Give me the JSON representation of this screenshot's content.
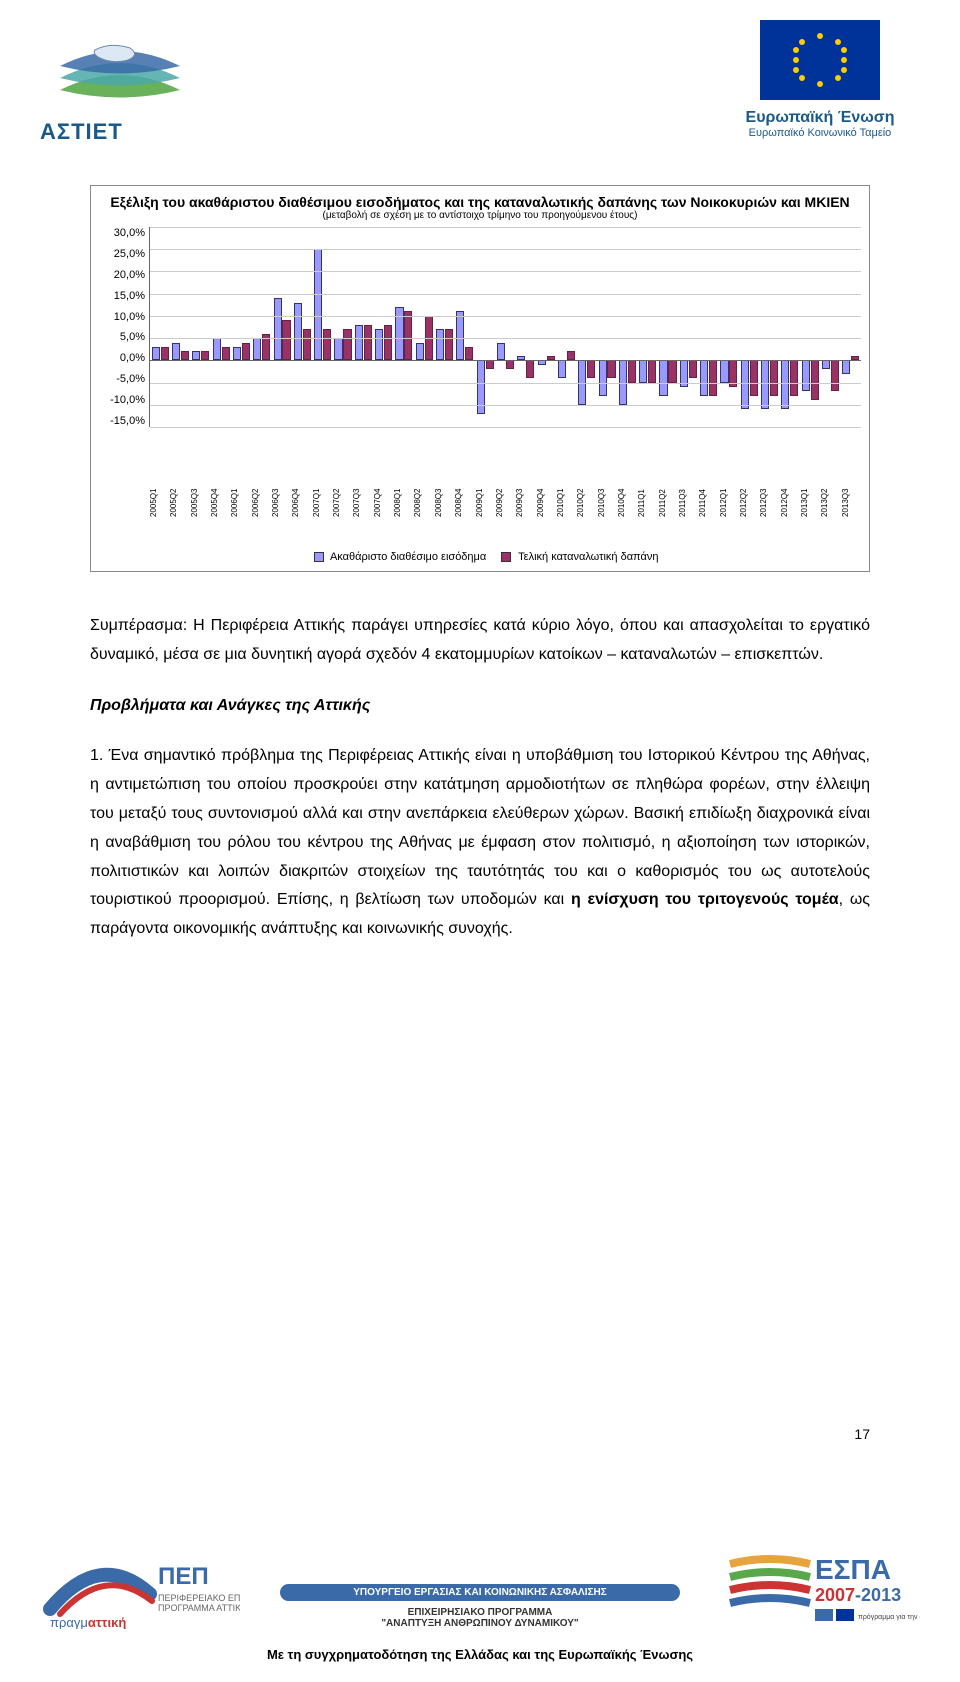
{
  "header": {
    "left_logo_text": "ΑΣΤΙΕΤ",
    "eu_title": "Ευρωπαϊκή Ένωση",
    "eu_sub": "Ευρωπαϊκό Κοινωνικό Ταμείο"
  },
  "chart": {
    "type": "bar",
    "title": "Εξέλιξη του ακαθάριστου διαθέσιμου εισοδήματος και της καταναλωτικής δαπάνης των Νοικοκυριών και ΜΚΙΕΝ",
    "subtitle": "(μεταβολή σε σχέση με το αντίστοιχο τρίμηνο του προηγούμενου έτους)",
    "ylim": [
      -15,
      30
    ],
    "yticks": [
      "30,0%",
      "25,0%",
      "20,0%",
      "15,0%",
      "10,0%",
      "5,0%",
      "0,0%",
      "-5,0%",
      "-10,0%",
      "-15,0%"
    ],
    "categories": [
      "2005Q1",
      "2005Q2",
      "2005Q3",
      "2005Q4",
      "2006Q1",
      "2006Q2",
      "2006Q3",
      "2006Q4",
      "2007Q1",
      "2007Q2",
      "2007Q3",
      "2007Q4",
      "2008Q1",
      "2008Q2",
      "2008Q3",
      "2008Q4",
      "2009Q1",
      "2009Q2",
      "2009Q3",
      "2009Q4",
      "2010Q1",
      "2010Q2",
      "2010Q3",
      "2010Q4",
      "2011Q1",
      "2011Q2",
      "2011Q3",
      "2011Q4",
      "2012Q1",
      "2012Q2",
      "2012Q3",
      "2012Q4",
      "2013Q1",
      "2013Q2",
      "2013Q3"
    ],
    "series1": {
      "label": "Ακαθάριστο διαθέσιμο εισόδημα",
      "color": "#9999ff",
      "values": [
        3,
        4,
        2,
        5,
        3,
        5,
        14,
        13,
        25,
        5,
        8,
        7,
        12,
        4,
        7,
        11,
        -12,
        4,
        1,
        -1,
        -4,
        -10,
        -8,
        -10,
        -5,
        -8,
        -6,
        -8,
        -5,
        -11,
        -11,
        -11,
        -7,
        -2,
        -3
      ]
    },
    "series2": {
      "label": "Τελική καταναλωτική δαπάνη",
      "color": "#993366",
      "values": [
        3,
        2,
        2,
        3,
        4,
        6,
        9,
        7,
        7,
        7,
        8,
        8,
        11,
        10,
        7,
        3,
        -2,
        -2,
        -4,
        1,
        2,
        -4,
        -4,
        -5,
        -5,
        -5,
        -4,
        -8,
        -6,
        -8,
        -8,
        -8,
        -9,
        -7,
        1
      ]
    },
    "background_color": "#ffffff",
    "grid_color": "#cccccc",
    "axis_color": "#666666",
    "label_fontsize": 11
  },
  "paragraphs": {
    "p1": "Συμπέρασμα: Η Περιφέρεια Αττικής παράγει υπηρεσίες κατά κύριο λόγο, όπου και απασχολείται το εργατικό δυναμικό, μέσα σε μια δυνητική αγορά σχεδόν 4 εκατομμυρίων κατοίκων – καταναλωτών – επισκεπτών.",
    "h1": "Προβλήματα και Ανάγκες της Αττικής",
    "p2a": "1. Ένα σημαντικό πρόβλημα της Περιφέρειας Αττικής είναι η υποβάθμιση του Ιστορικού Κέντρου της Αθήνας, η αντιμετώπιση του οποίου προσκρούει στην κατάτμηση αρμοδιοτήτων σε πληθώρα φορέων, στην έλλειψη του μεταξύ τους συντονισμού αλλά και στην ανεπάρκεια ελεύθερων χώρων. Βασική επιδίωξη διαχρονικά είναι η αναβάθμιση του ρόλου του κέντρου της Αθήνας με έμφαση στον πολιτισμό, η αξιοποίηση των ιστορικών, πολιτιστικών και λοιπών διακριτών στοιχείων της ταυτότητάς του και ο καθορισμός του ως αυτοτελούς τουριστικού προορισμού. Επίσης, η βελτίωση των υποδομών και ",
    "p2b": "η ενίσχυση του τριτογενούς τομέα",
    "p2c": ", ως παράγοντα οικονομικής ανάπτυξης και κοινωνικής συνοχής."
  },
  "page_number": "17",
  "footer": {
    "pep_line1": "ΠΕΠ",
    "mid_banner": "ΥΠΟΥΡΓΕΙΟ ΕΡΓΑΣΙΑΣ ΚΑΙ ΚΟΙΝΩΝΙΚΗΣ ΑΣΦΑΛΙΣΗΣ",
    "mid_sub1": "ΕΠΙΧΕΙΡΗΣΙΑΚΟ ΠΡΟΓΡΑΜΜΑ",
    "mid_sub2": "\"ΑΝΑΠΤΥΞΗ ΑΝΘΡΩΠΙΝΟΥ ΔΥΝΑΜΙΚΟΥ\"",
    "espa_text": "ΕΣΠΑ",
    "espa_years": "2007-2013",
    "bottom_line": "Με τη συγχρηματοδότηση της Ελλάδας και της Ευρωπαϊκής Ένωσης"
  },
  "colors": {
    "brand_blue": "#1a5a8a",
    "eu_blue": "#003399",
    "eu_gold": "#ffcc00",
    "green": "#5aa84a",
    "red": "#cc3333",
    "orange": "#e8a33d",
    "teal": "#4aa8a8"
  }
}
